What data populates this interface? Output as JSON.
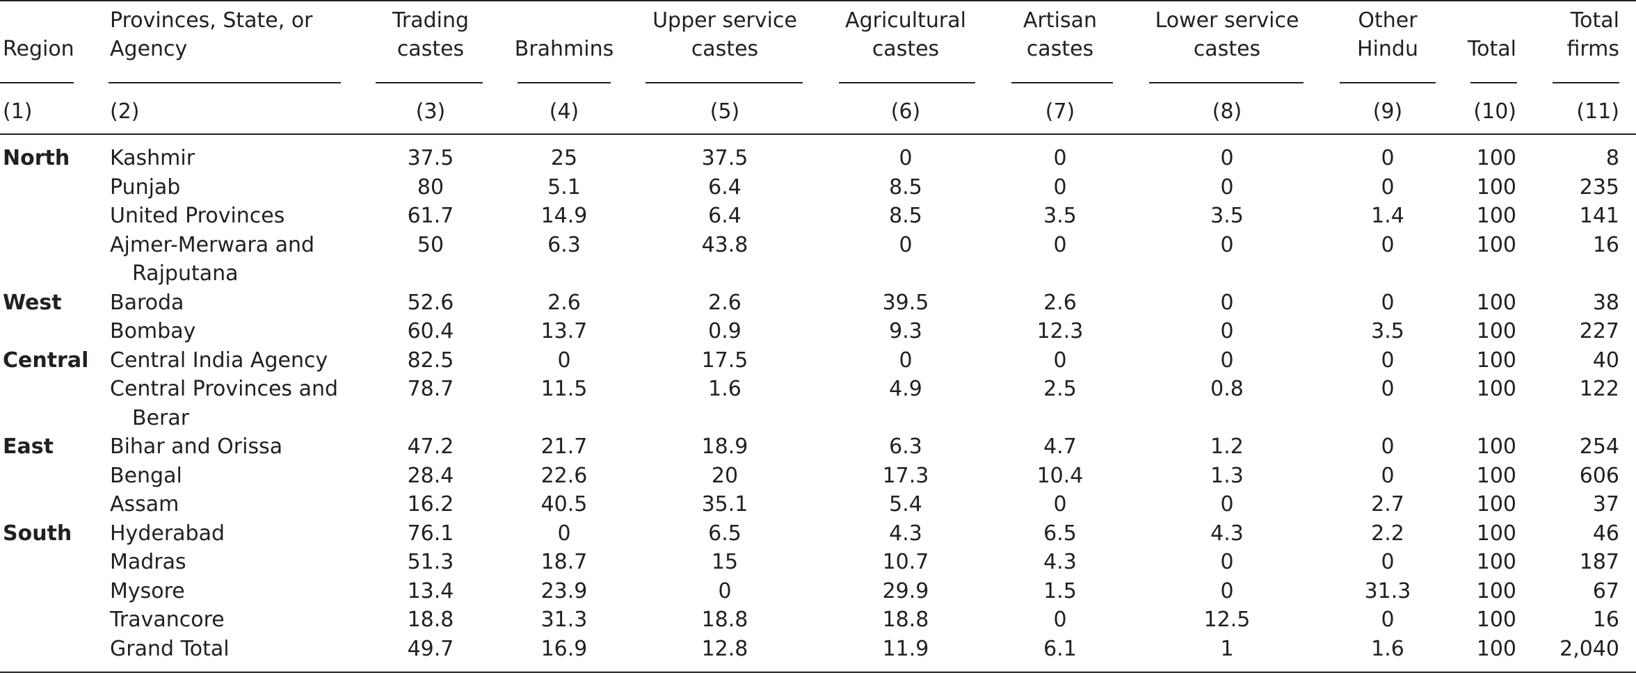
{
  "table": {
    "headers": [
      {
        "lines": [
          "Region"
        ]
      },
      {
        "lines": [
          "Provinces, State, or",
          "Agency"
        ]
      },
      {
        "lines": [
          "Trading",
          "castes"
        ]
      },
      {
        "lines": [
          "Brahmins"
        ]
      },
      {
        "lines": [
          "Upper service",
          "castes"
        ]
      },
      {
        "lines": [
          "Agricultural",
          "castes"
        ]
      },
      {
        "lines": [
          "Artisan",
          "castes"
        ]
      },
      {
        "lines": [
          "Lower service",
          "castes"
        ]
      },
      {
        "lines": [
          "Other",
          "Hindu"
        ]
      },
      {
        "lines": [
          "Total"
        ]
      },
      {
        "lines": [
          "Total",
          "firms"
        ]
      }
    ],
    "column_numbers": [
      "(1)",
      "(2)",
      "(3)",
      "(4)",
      "(5)",
      "(6)",
      "(7)",
      "(8)",
      "(9)",
      "(10)",
      "(11)"
    ],
    "rows": [
      {
        "region": "North",
        "name": [
          "Kashmir"
        ],
        "values": [
          "37.5",
          "25",
          "37.5",
          "0",
          "0",
          "0",
          "0",
          "100",
          "8"
        ]
      },
      {
        "region": "",
        "name": [
          "Punjab"
        ],
        "values": [
          "80",
          "5.1",
          "6.4",
          "8.5",
          "0",
          "0",
          "0",
          "100",
          "235"
        ]
      },
      {
        "region": "",
        "name": [
          "United Provinces"
        ],
        "values": [
          "61.7",
          "14.9",
          "6.4",
          "8.5",
          "3.5",
          "3.5",
          "1.4",
          "100",
          "141"
        ]
      },
      {
        "region": "",
        "name": [
          "Ajmer-Merwara and",
          "Rajputana"
        ],
        "values": [
          "50",
          "6.3",
          "43.8",
          "0",
          "0",
          "0",
          "0",
          "100",
          "16"
        ]
      },
      {
        "region": "West",
        "name": [
          "Baroda"
        ],
        "values": [
          "52.6",
          "2.6",
          "2.6",
          "39.5",
          "2.6",
          "0",
          "0",
          "100",
          "38"
        ]
      },
      {
        "region": "",
        "name": [
          "Bombay"
        ],
        "values": [
          "60.4",
          "13.7",
          "0.9",
          "9.3",
          "12.3",
          "0",
          "3.5",
          "100",
          "227"
        ]
      },
      {
        "region": "Central",
        "name": [
          "Central India Agency"
        ],
        "values": [
          "82.5",
          "0",
          "17.5",
          "0",
          "0",
          "0",
          "0",
          "100",
          "40"
        ]
      },
      {
        "region": "",
        "name": [
          "Central Provinces and",
          "Berar"
        ],
        "values": [
          "78.7",
          "11.5",
          "1.6",
          "4.9",
          "2.5",
          "0.8",
          "0",
          "100",
          "122"
        ]
      },
      {
        "region": "East",
        "name": [
          "Bihar and Orissa"
        ],
        "values": [
          "47.2",
          "21.7",
          "18.9",
          "6.3",
          "4.7",
          "1.2",
          "0",
          "100",
          "254"
        ]
      },
      {
        "region": "",
        "name": [
          "Bengal"
        ],
        "values": [
          "28.4",
          "22.6",
          "20",
          "17.3",
          "10.4",
          "1.3",
          "0",
          "100",
          "606"
        ]
      },
      {
        "region": "",
        "name": [
          "Assam"
        ],
        "values": [
          "16.2",
          "40.5",
          "35.1",
          "5.4",
          "0",
          "0",
          "2.7",
          "100",
          "37"
        ]
      },
      {
        "region": "South",
        "name": [
          "Hyderabad"
        ],
        "values": [
          "76.1",
          "0",
          "6.5",
          "4.3",
          "6.5",
          "4.3",
          "2.2",
          "100",
          "46"
        ]
      },
      {
        "region": "",
        "name": [
          "Madras"
        ],
        "values": [
          "51.3",
          "18.7",
          "15",
          "10.7",
          "4.3",
          "0",
          "0",
          "100",
          "187"
        ]
      },
      {
        "region": "",
        "name": [
          "Mysore"
        ],
        "values": [
          "13.4",
          "23.9",
          "0",
          "29.9",
          "1.5",
          "0",
          "31.3",
          "100",
          "67"
        ]
      },
      {
        "region": "",
        "name": [
          "Travancore"
        ],
        "values": [
          "18.8",
          "31.3",
          "18.8",
          "18.8",
          "0",
          "12.5",
          "0",
          "100",
          "16"
        ]
      },
      {
        "region": "",
        "name": [
          "Grand Total"
        ],
        "values": [
          "49.7",
          "16.9",
          "12.8",
          "11.9",
          "6.1",
          "1",
          "1.6",
          "100",
          "2,040"
        ]
      }
    ]
  }
}
